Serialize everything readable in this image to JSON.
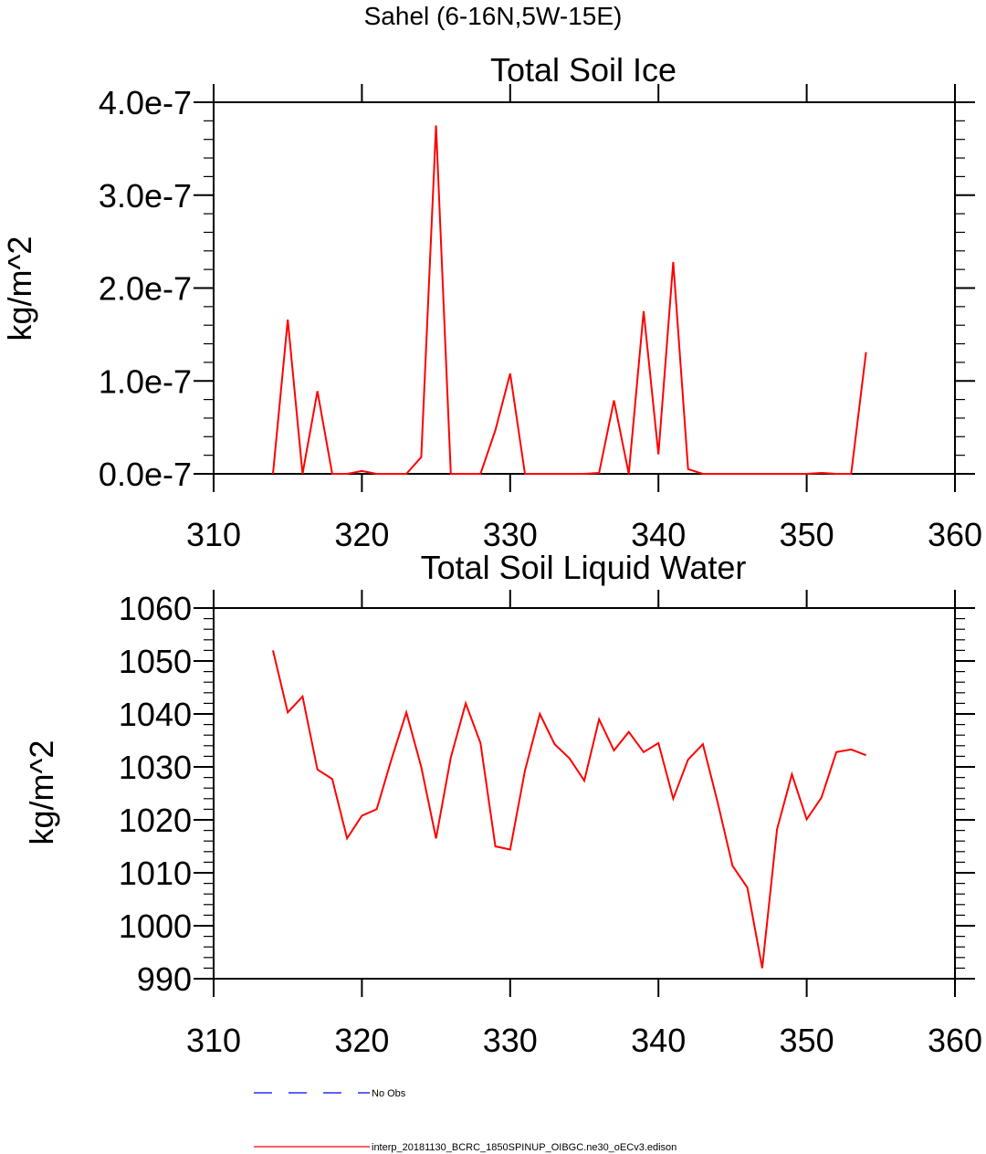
{
  "figure": {
    "suptitle": "Sahel (6-16N,5W-15E)"
  },
  "chart_data": [
    {
      "type": "line",
      "title": "Total Soil Ice",
      "xlabel": "",
      "ylabel": "kg/m^2",
      "xlim": [
        310,
        360
      ],
      "ylim": [
        0.0,
        4e-07
      ],
      "x_ticks": [
        310,
        320,
        330,
        340,
        350,
        360
      ],
      "x_tick_labels": [
        "310",
        "320",
        "330",
        "340",
        "350",
        "360"
      ],
      "y_ticks": [
        0.0,
        1e-07,
        2e-07,
        3e-07,
        4e-07
      ],
      "y_tick_labels": [
        "0.0e-7",
        "1.0e-7",
        "2.0e-7",
        "3.0e-7",
        "4.0e-7"
      ],
      "series": [
        {
          "name": "interp_20181130_BCRC_1850SPINUP_OIBGC.ne30_oECv3.edison",
          "color": "#ff0000",
          "x": [
            314,
            315,
            316,
            317,
            318,
            319,
            320,
            321,
            322,
            323,
            324,
            325,
            326,
            327,
            328,
            329,
            330,
            331,
            332,
            333,
            334,
            335,
            336,
            337,
            338,
            339,
            340,
            341,
            342,
            343,
            344,
            345,
            346,
            347,
            348,
            349,
            350,
            351,
            352,
            353,
            354
          ],
          "values": [
            0,
            1.66e-07,
            0,
            8.9e-08,
            0,
            0,
            3e-09,
            0,
            0,
            0,
            1.8e-08,
            3.75e-07,
            0,
            0,
            0,
            4.7e-08,
            1.08e-07,
            0,
            0,
            0,
            0,
            0,
            1e-09,
            7.9e-08,
            0,
            1.75e-07,
            2.1e-08,
            2.28e-07,
            5e-09,
            0,
            0,
            0,
            0,
            0,
            0,
            0,
            0,
            1e-09,
            0,
            0,
            1.31e-07
          ]
        }
      ]
    },
    {
      "type": "line",
      "title": "Total Soil Liquid Water",
      "xlabel": "",
      "ylabel": "kg/m^2",
      "xlim": [
        310,
        360
      ],
      "ylim": [
        990,
        1060
      ],
      "x_ticks": [
        310,
        320,
        330,
        340,
        350,
        360
      ],
      "x_tick_labels": [
        "310",
        "320",
        "330",
        "340",
        "350",
        "360"
      ],
      "y_ticks": [
        990,
        1000,
        1010,
        1020,
        1030,
        1040,
        1050,
        1060
      ],
      "y_tick_labels": [
        "990",
        "1000",
        "1010",
        "1020",
        "1030",
        "1040",
        "1050",
        "1060"
      ],
      "series": [
        {
          "name": "interp_20181130_BCRC_1850SPINUP_OIBGC.ne30_oECv3.edison",
          "color": "#ff0000",
          "x": [
            314,
            315,
            316,
            317,
            318,
            319,
            320,
            321,
            322,
            323,
            324,
            325,
            326,
            327,
            328,
            329,
            330,
            331,
            332,
            333,
            334,
            335,
            336,
            337,
            338,
            339,
            340,
            341,
            342,
            343,
            344,
            345,
            346,
            347,
            348,
            349,
            350,
            351,
            352,
            353,
            354
          ],
          "values": [
            1052,
            1040.3,
            1043.3,
            1029.5,
            1027.7,
            1016.5,
            1020.8,
            1022,
            1031.5,
            1040.3,
            1030,
            1016.5,
            1031.8,
            1042,
            1034.5,
            1015,
            1014.4,
            1029.3,
            1040,
            1034.3,
            1031.6,
            1027.4,
            1039,
            1033.1,
            1036.6,
            1032.8,
            1034.5,
            1024,
            1031.4,
            1034.3,
            1023.2,
            1011.3,
            1007.2,
            992,
            1018.2,
            1028.6,
            1020.1,
            1024.2,
            1032.8,
            1033.3,
            1032.2
          ]
        }
      ]
    }
  ],
  "legend": {
    "entries": [
      {
        "label": "No Obs",
        "color": "#0000ff",
        "style": "dashed"
      },
      {
        "label": "interp_20181130_BCRC_1850SPINUP_OIBGC.ne30_oECv3.edison",
        "color": "#ff0000",
        "style": "solid"
      }
    ]
  }
}
